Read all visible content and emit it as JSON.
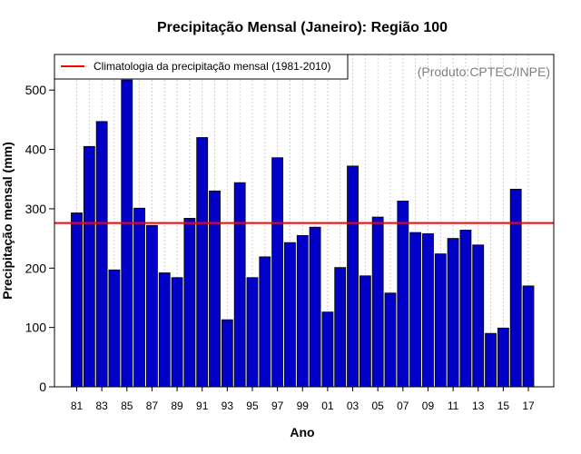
{
  "chart_data": {
    "type": "bar",
    "title": "Precipitação Mensal (Janeiro): Região 100",
    "xlabel": "Ano",
    "ylabel": "Precipitação mensal (mm)",
    "ylim": [
      0,
      560
    ],
    "yticks": [
      0,
      100,
      200,
      300,
      400,
      500
    ],
    "categories": [
      "81",
      "82",
      "83",
      "84",
      "85",
      "86",
      "87",
      "88",
      "89",
      "90",
      "91",
      "92",
      "93",
      "94",
      "95",
      "96",
      "97",
      "98",
      "99",
      "00",
      "01",
      "02",
      "03",
      "04",
      "05",
      "06",
      "07",
      "08",
      "09",
      "10",
      "11",
      "12",
      "13",
      "14",
      "15",
      "16",
      "17"
    ],
    "xtick_labels": [
      "81",
      "83",
      "85",
      "87",
      "89",
      "91",
      "93",
      "95",
      "97",
      "99",
      "01",
      "03",
      "05",
      "07",
      "09",
      "11",
      "13",
      "15",
      "17"
    ],
    "values": [
      293,
      405,
      447,
      197,
      517,
      301,
      272,
      192,
      184,
      284,
      420,
      330,
      113,
      344,
      184,
      219,
      386,
      243,
      255,
      269,
      126,
      201,
      372,
      187,
      286,
      158,
      313,
      260,
      258,
      224,
      250,
      264,
      239,
      90,
      99,
      333,
      170
    ],
    "bar_color": "#0000c8",
    "climatology": {
      "value": 276,
      "label": "Climatologia da precipitação mensal (1981-2010)",
      "color": "#ff0000"
    },
    "source": "(Produto:CPTEC/INPE)",
    "grid": "vertical dotted",
    "legend_position": "top-left"
  }
}
